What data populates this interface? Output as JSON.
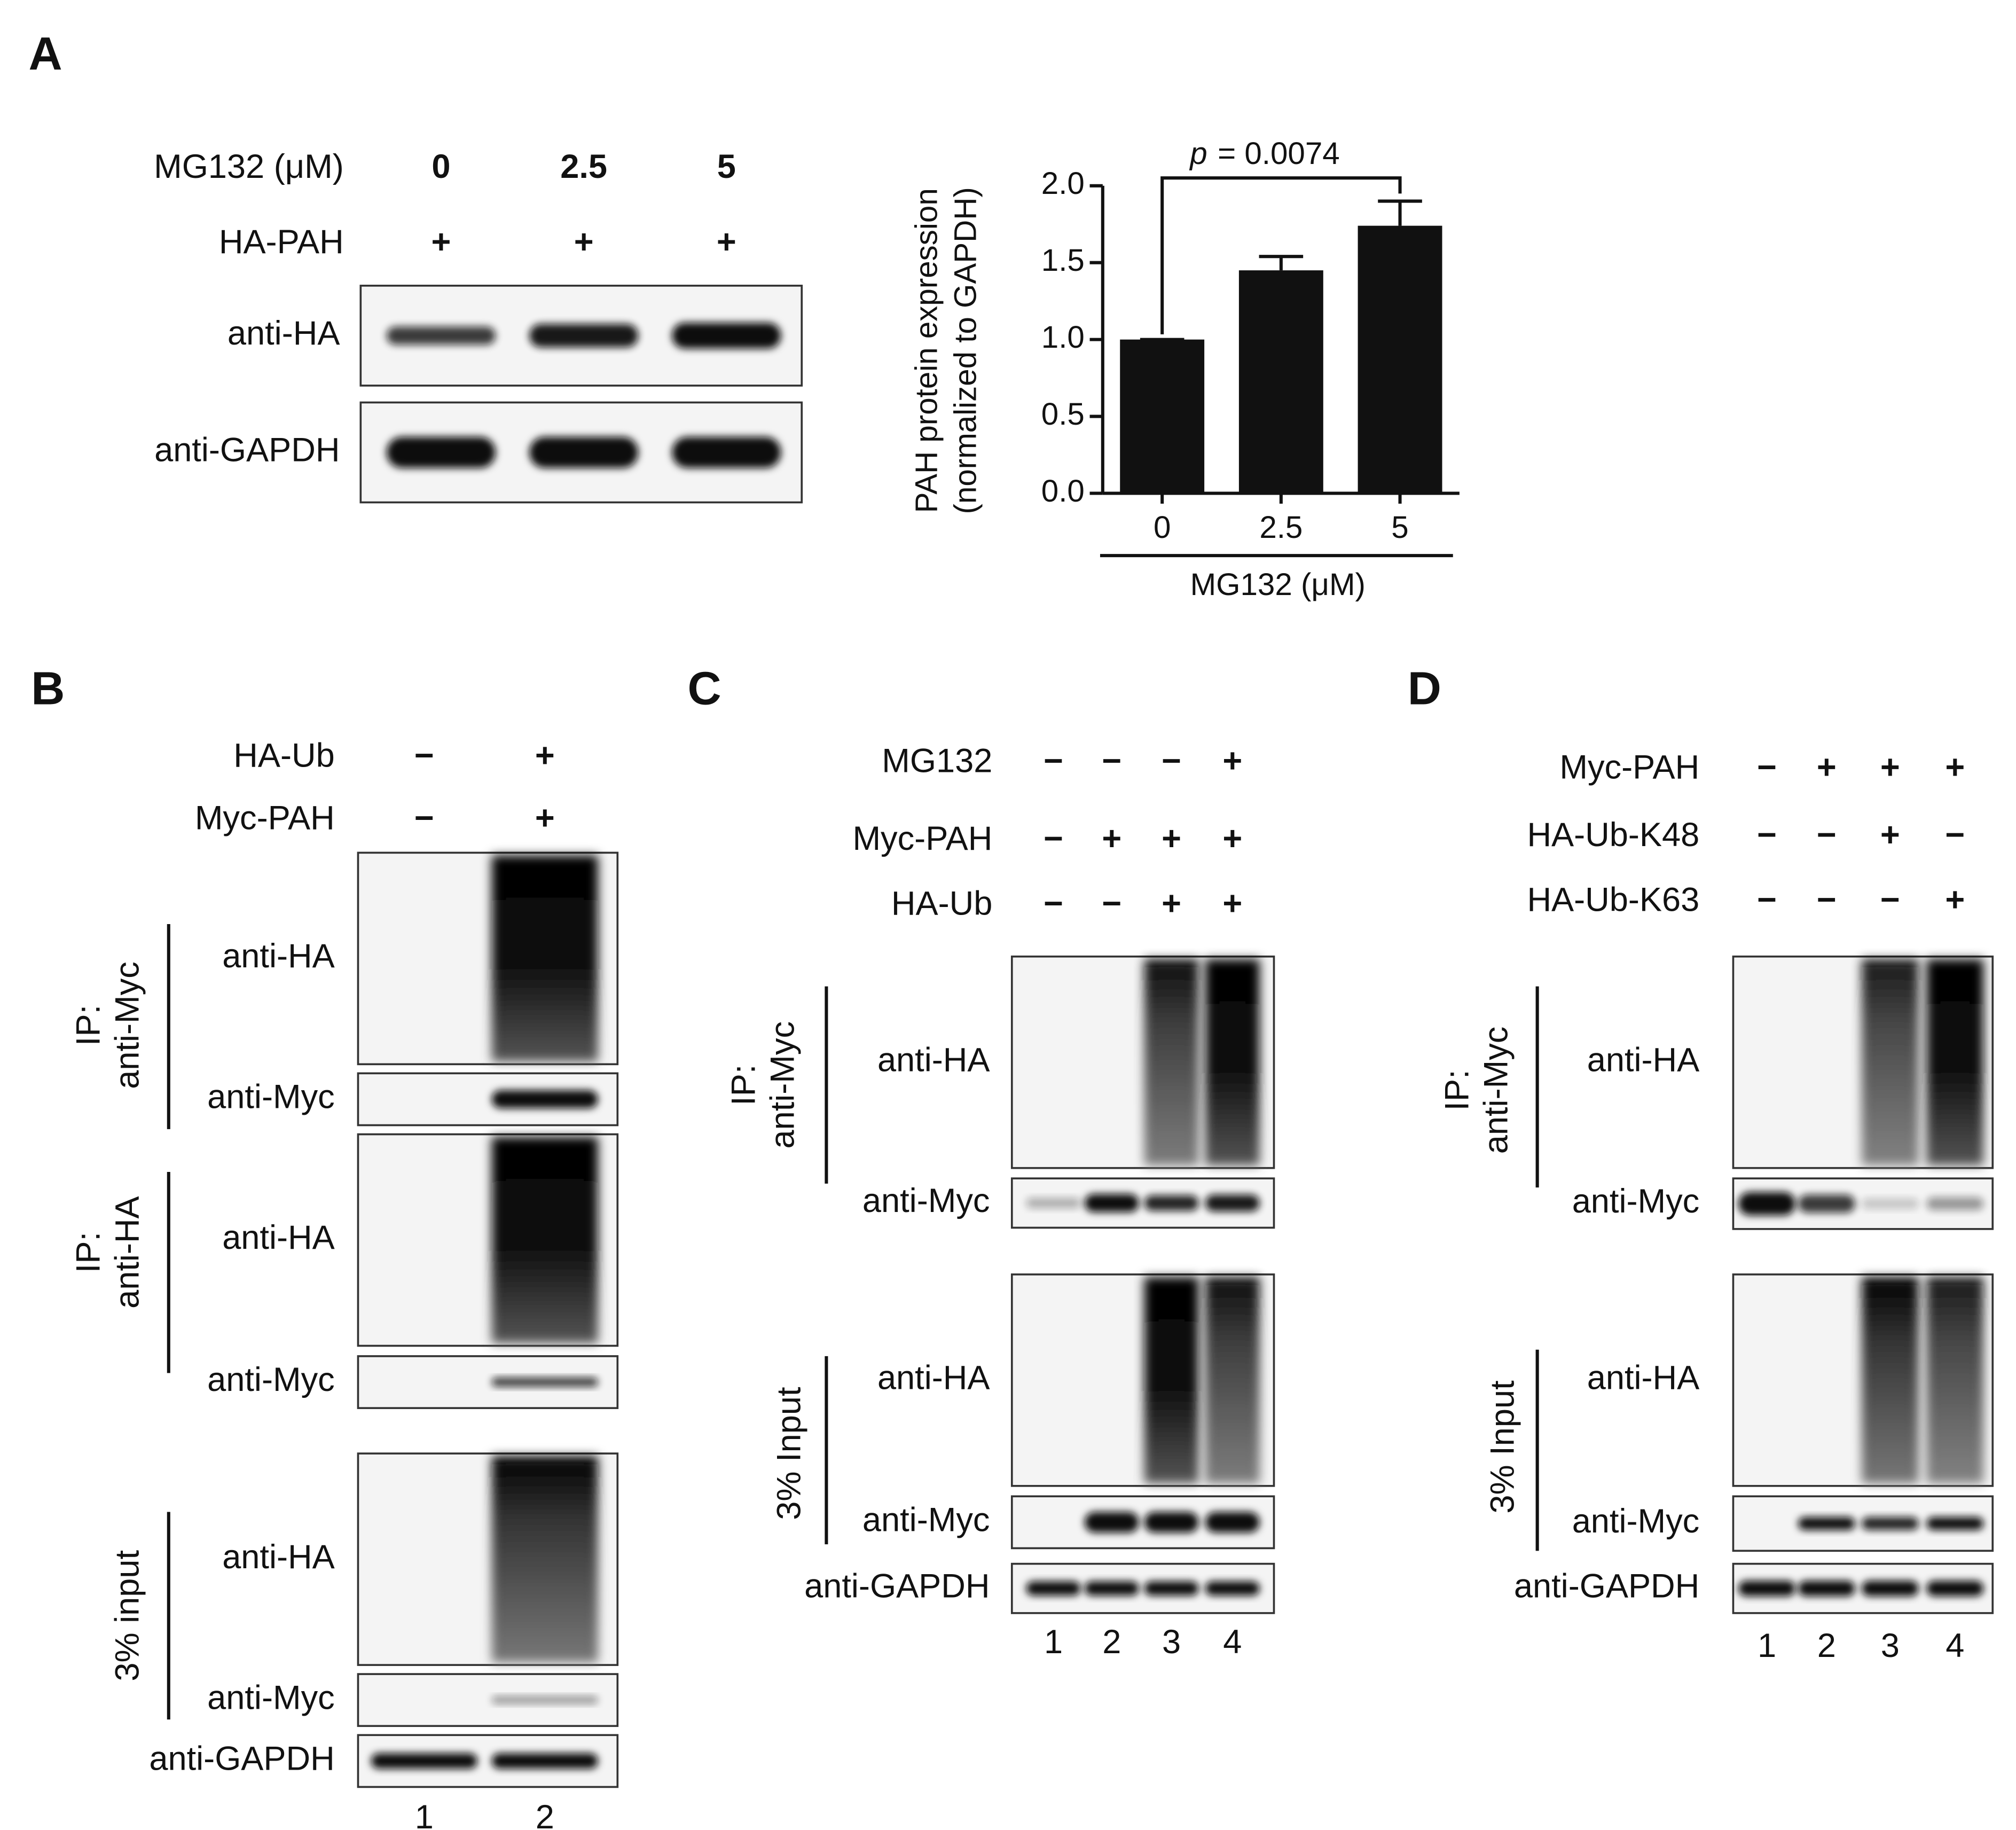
{
  "chart_data": {
    "type": "bar",
    "categories": [
      "0",
      "2.5",
      "5"
    ],
    "values": [
      1.0,
      1.45,
      1.74
    ],
    "errors": [
      0,
      0.09,
      0.16
    ],
    "color": "#111111",
    "ylim": [
      0,
      2.0
    ],
    "yticks": [
      {
        "value": 0,
        "label": "0.0"
      },
      {
        "value": 0.5,
        "label": "0.5"
      },
      {
        "value": 1.0,
        "label": "1.0"
      },
      {
        "value": 1.5,
        "label": "1.5"
      },
      {
        "value": 2.0,
        "label": "2.0"
      }
    ],
    "ylabel": [
      "PAH protein expression",
      "(normalized to GAPDH)"
    ],
    "xlabel": "MG132 (μM)",
    "grid": false,
    "annotation": {
      "italic": "p",
      "text": "= 0.0074"
    }
  },
  "panels": [
    {
      "label": "A",
      "conditions": [
        {
          "name": "MG132 (μM)",
          "values": [
            "0",
            "2.5",
            "5"
          ]
        },
        {
          "name": "HA-PAH",
          "values": [
            "+",
            "+",
            "+"
          ]
        }
      ],
      "groups": [],
      "blots": [
        "anti-HA",
        "anti-GAPDH"
      ],
      "lanes": []
    },
    {
      "label": "B",
      "conditions": [
        {
          "name": "HA-Ub",
          "values": [
            "−",
            "+"
          ]
        },
        {
          "name": "Myc-PAH",
          "values": [
            "−",
            "+"
          ]
        }
      ],
      "groups": [
        {
          "label": [
            "IP:",
            "anti-Myc"
          ],
          "blots": [
            "anti-HA",
            "anti-Myc"
          ]
        },
        {
          "label": [
            "IP:",
            "anti-HA"
          ],
          "blots": [
            "anti-HA",
            "anti-Myc"
          ]
        },
        {
          "label": [
            "3% input"
          ],
          "blots": [
            "anti-HA",
            "anti-Myc"
          ]
        }
      ],
      "blots": [
        "anti-GAPDH"
      ],
      "lanes": [
        "1",
        "2"
      ]
    },
    {
      "label": "C",
      "conditions": [
        {
          "name": "MG132",
          "values": [
            "−",
            "−",
            "−",
            "+"
          ]
        },
        {
          "name": "Myc-PAH",
          "values": [
            "−",
            "+",
            "+",
            "+"
          ]
        },
        {
          "name": "HA-Ub",
          "values": [
            "−",
            "−",
            "+",
            "+"
          ]
        }
      ],
      "groups": [
        {
          "label": [
            "IP:",
            "anti-Myc"
          ],
          "blots": [
            "anti-HA",
            "anti-Myc"
          ]
        },
        {
          "label": [
            "3% Input"
          ],
          "blots": [
            "anti-HA",
            "anti-Myc"
          ]
        }
      ],
      "blots": [
        "anti-GAPDH"
      ],
      "lanes": [
        "1",
        "2",
        "3",
        "4"
      ]
    },
    {
      "label": "D",
      "conditions": [
        {
          "name": "Myc-PAH",
          "values": [
            "−",
            "+",
            "+",
            "+"
          ]
        },
        {
          "name": "HA-Ub-K48",
          "values": [
            "−",
            "−",
            "+",
            "−"
          ]
        },
        {
          "name": "HA-Ub-K63",
          "values": [
            "−",
            "−",
            "−",
            "+"
          ]
        }
      ],
      "groups": [
        {
          "label": [
            "IP:",
            "anti-Myc"
          ],
          "blots": [
            "anti-HA",
            "anti-Myc"
          ]
        },
        {
          "label": [
            "3% Input"
          ],
          "blots": [
            "anti-HA",
            "anti-Myc"
          ]
        }
      ],
      "blots": [
        "anti-GAPDH"
      ],
      "lanes": [
        "1",
        "2",
        "3",
        "4"
      ]
    }
  ]
}
